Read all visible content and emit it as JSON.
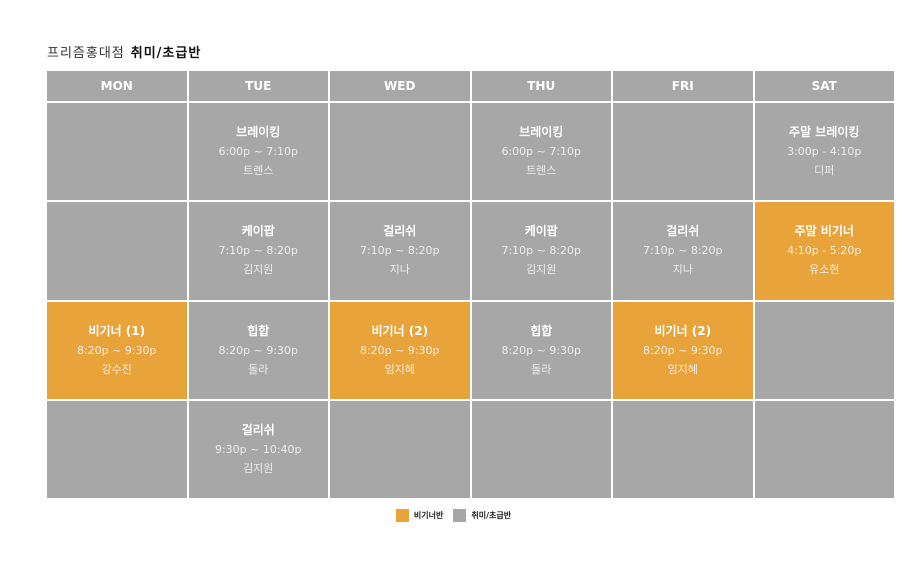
{
  "header": {
    "branch": "프리즘홍대점",
    "class_type": "취미/초급반"
  },
  "colors": {
    "beginner": "#e8a33a",
    "hobby": "#a7a7a7"
  },
  "days": [
    "MON",
    "TUE",
    "WED",
    "THU",
    "FRI",
    "SAT"
  ],
  "rows": [
    [
      null,
      {
        "name": "브레이킹",
        "time": "6:00p ~ 7:10p",
        "teacher": "트렌스",
        "level": "hobby"
      },
      null,
      {
        "name": "브레이킹",
        "time": "6:00p ~ 7:10p",
        "teacher": "트렌스",
        "level": "hobby"
      },
      null,
      {
        "name": "주말 브레이킹",
        "time": "3:00p - 4:10p",
        "teacher": "디퍼",
        "level": "hobby"
      }
    ],
    [
      null,
      {
        "name": "케이팝",
        "time": "7:10p ~ 8:20p",
        "teacher": "김지원",
        "level": "hobby"
      },
      {
        "name": "걸리쉬",
        "time": "7:10p ~ 8:20p",
        "teacher": "지나",
        "level": "hobby"
      },
      {
        "name": "케이팝",
        "time": "7:10p ~ 8:20p",
        "teacher": "김지원",
        "level": "hobby"
      },
      {
        "name": "걸리쉬",
        "time": "7:10p ~ 8:20p",
        "teacher": "지나",
        "level": "hobby"
      },
      {
        "name": "주말 비기너",
        "time": "4:10p - 5:20p",
        "teacher": "유소현",
        "level": "beginner"
      }
    ],
    [
      {
        "name": "비기너 (1)",
        "time": "8:20p ~ 9:30p",
        "teacher": "강수진",
        "level": "beginner"
      },
      {
        "name": "힙합",
        "time": "8:20p ~ 9:30p",
        "teacher": "돌라",
        "level": "hobby"
      },
      {
        "name": "비기너 (2)",
        "time": "8:20p ~ 9:30p",
        "teacher": "임지혜",
        "level": "beginner"
      },
      {
        "name": "힙합",
        "time": "8:20p ~ 9:30p",
        "teacher": "돌라",
        "level": "hobby"
      },
      {
        "name": "비기너 (2)",
        "time": "8:20p ~ 9:30p",
        "teacher": "임지혜",
        "level": "beginner"
      },
      null
    ],
    [
      null,
      {
        "name": "걸리쉬",
        "time": "9:30p ~ 10:40p",
        "teacher": "김지원",
        "level": "hobby"
      },
      null,
      null,
      null,
      null
    ]
  ],
  "legend": [
    {
      "label": "비기너반",
      "level": "beginner"
    },
    {
      "label": "취미/초급반",
      "level": "hobby"
    }
  ]
}
